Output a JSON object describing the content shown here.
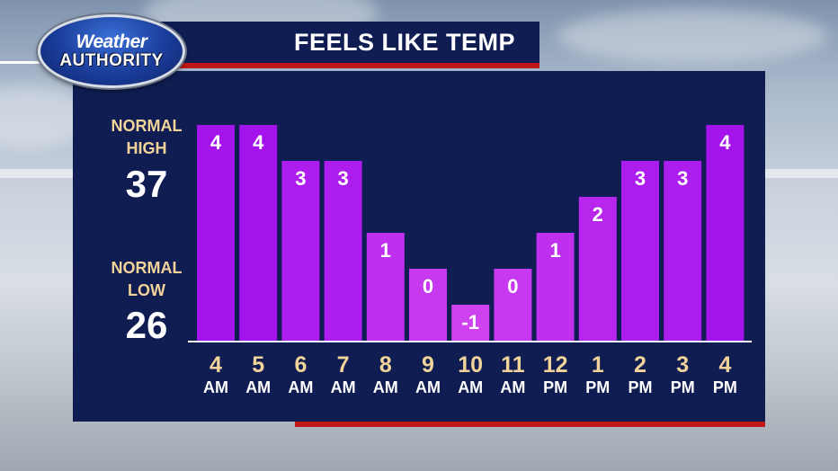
{
  "header": {
    "title": "FEELS LIKE TEMP",
    "logo_line1": "Weather",
    "logo_line2": "AUTHORITY"
  },
  "normals": {
    "high_label_line1": "NORMAL",
    "high_label_line2": "HIGH",
    "high_value": "37",
    "low_label_line1": "NORMAL",
    "low_label_line2": "LOW",
    "low_value": "26"
  },
  "colors": {
    "panel": "#0f1d52",
    "accent_red": "#c01818",
    "bar": "#a21ee6",
    "label_gold": "#f2d49a"
  },
  "chart_data": {
    "type": "bar",
    "title": "FEELS LIKE TEMP",
    "categories": [
      "4 AM",
      "5 AM",
      "6 AM",
      "7 AM",
      "8 AM",
      "9 AM",
      "10 AM",
      "11 AM",
      "12 PM",
      "1 PM",
      "2 PM",
      "3 PM",
      "4 PM"
    ],
    "hours": [
      "4",
      "5",
      "6",
      "7",
      "8",
      "9",
      "10",
      "11",
      "12",
      "1",
      "2",
      "3",
      "4"
    ],
    "periods": [
      "AM",
      "AM",
      "AM",
      "AM",
      "AM",
      "AM",
      "AM",
      "AM",
      "PM",
      "PM",
      "PM",
      "PM",
      "PM"
    ],
    "values": [
      4,
      4,
      3,
      3,
      1,
      0,
      -1,
      0,
      1,
      2,
      3,
      3,
      4
    ],
    "value_labels": [
      "4",
      "4",
      "3",
      "3",
      "1",
      "0",
      "-1",
      "0",
      "1",
      "2",
      "3",
      "3",
      "4"
    ],
    "ylim": [
      -2,
      4
    ],
    "grid": false,
    "legend": "none",
    "data_labels": true
  }
}
